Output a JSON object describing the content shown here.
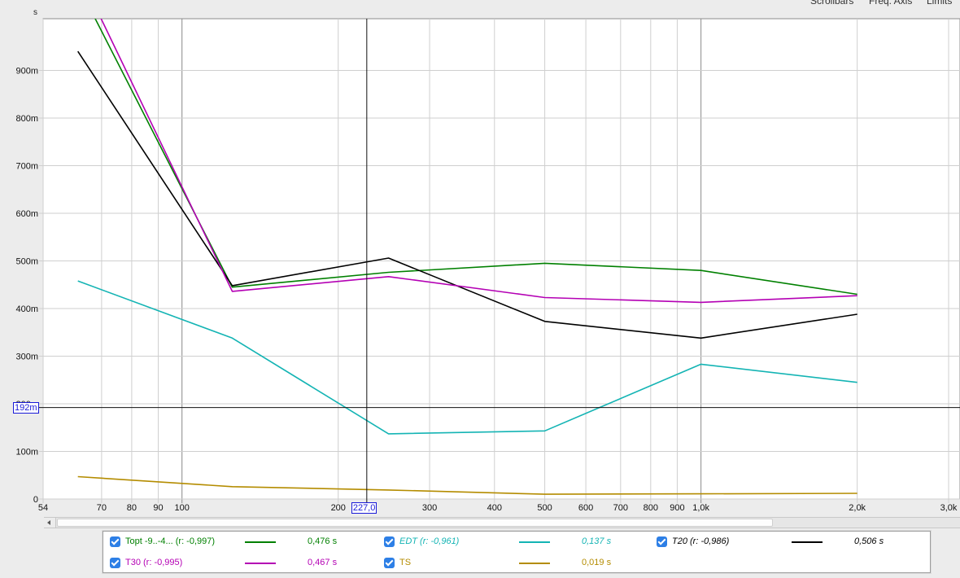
{
  "toolbar": {
    "scrollbars_label": "Scrollbars",
    "freq_axis_label": "Freq. Axis",
    "limits_label": "Limits"
  },
  "cursor": {
    "y_readout": "192m",
    "x_readout": "227,0"
  },
  "legend": [
    {
      "name": "Topt -9..-4... (r: -0,997)",
      "value": "0,476 s",
      "color": "#008000",
      "italic": false
    },
    {
      "name": "EDT (r: -0,961)",
      "value": "0,137 s",
      "color": "#14b4b4",
      "italic": true
    },
    {
      "name": "T20 (r: -0,986)",
      "value": "0,506 s",
      "color": "#000000",
      "italic": true
    },
    {
      "name": "T30 (r: -0,995)",
      "value": "0,467 s",
      "color": "#b400b4",
      "italic": false
    },
    {
      "name": "TS",
      "value": "0,019 s",
      "color": "#b48c00",
      "italic": false
    }
  ],
  "chart_data": {
    "type": "line",
    "ylabel": "s",
    "xscale": "log",
    "xlim": [
      54,
      3000
    ],
    "ylim": [
      0,
      1.0
    ],
    "x": [
      63,
      125,
      250,
      500,
      1000,
      2000
    ],
    "x_ticks": [
      {
        "v": 54,
        "label": "54"
      },
      {
        "v": 70,
        "label": "70"
      },
      {
        "v": 80,
        "label": "80"
      },
      {
        "v": 90,
        "label": "90"
      },
      {
        "v": 100,
        "label": "100"
      },
      {
        "v": 200,
        "label": "200"
      },
      {
        "v": 300,
        "label": "300"
      },
      {
        "v": 400,
        "label": "400"
      },
      {
        "v": 500,
        "label": "500"
      },
      {
        "v": 600,
        "label": "600"
      },
      {
        "v": 700,
        "label": "700"
      },
      {
        "v": 800,
        "label": "800"
      },
      {
        "v": 900,
        "label": "900"
      },
      {
        "v": 1000,
        "label": "1,0k"
      },
      {
        "v": 2000,
        "label": "2,0k"
      },
      {
        "v": 3000,
        "label": "3,0k"
      }
    ],
    "y_ticks": [
      {
        "v": 0,
        "label": "0"
      },
      {
        "v": 0.1,
        "label": "100m"
      },
      {
        "v": 0.2,
        "label": "200m"
      },
      {
        "v": 0.3,
        "label": "300m"
      },
      {
        "v": 0.4,
        "label": "400m"
      },
      {
        "v": 0.5,
        "label": "500m"
      },
      {
        "v": 0.6,
        "label": "600m"
      },
      {
        "v": 0.7,
        "label": "700m"
      },
      {
        "v": 0.8,
        "label": "800m"
      },
      {
        "v": 0.9,
        "label": "900m"
      }
    ],
    "series": [
      {
        "name": "Topt -9..-4... (r: -0,997)",
        "color": "#008000",
        "values": [
          1.08,
          0.445,
          0.476,
          0.495,
          0.48,
          0.43
        ]
      },
      {
        "name": "EDT (r: -0,961)",
        "color": "#14b4b4",
        "values": [
          0.458,
          0.338,
          0.137,
          0.143,
          0.283,
          0.245
        ]
      },
      {
        "name": "T20 (r: -0,986)",
        "color": "#000000",
        "values": [
          0.94,
          0.448,
          0.506,
          0.373,
          0.338,
          0.388
        ]
      },
      {
        "name": "T30 (r: -0,995)",
        "color": "#b400b4",
        "values": [
          1.11,
          0.436,
          0.467,
          0.423,
          0.413,
          0.427
        ]
      },
      {
        "name": "TS",
        "color": "#b48c00",
        "values": [
          0.047,
          0.026,
          0.019,
          0.01,
          0.011,
          0.012
        ]
      }
    ],
    "cursor_x": 227,
    "cursor_y": 0.192,
    "grid": true
  }
}
